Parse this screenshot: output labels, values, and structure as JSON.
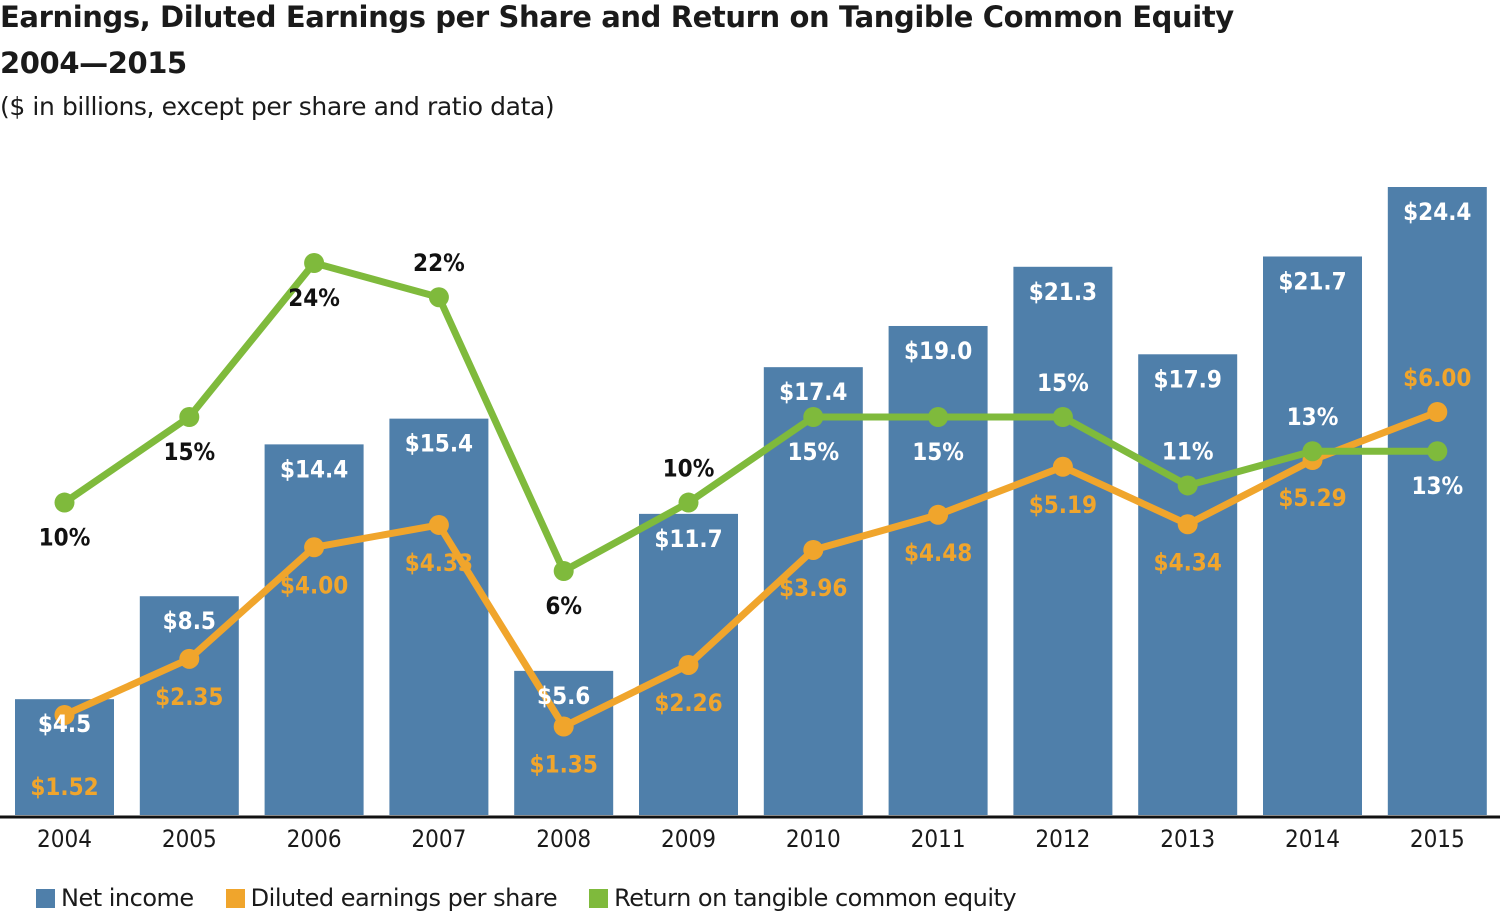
{
  "title_line1": "Earnings, Diluted Earnings per Share and Return on Tangible Common Equity",
  "title_line2": "2004—2015",
  "subtitle": "($ in billions, except per share and ratio data)",
  "colors": {
    "net_income": "#4f7faa",
    "eps": "#f0a52c",
    "rotce": "#7fba3c",
    "axis": "#111111",
    "label_dark": "#111111",
    "label_light": "#ffffff"
  },
  "legend": [
    {
      "label": "Net income",
      "color": "#4f7faa"
    },
    {
      "label": "Diluted earnings per share",
      "color": "#f0a52c"
    },
    {
      "label": "Return on tangible common equity",
      "color": "#7fba3c"
    }
  ],
  "chart_data": {
    "type": "bar+line",
    "title": "Earnings, Diluted Earnings per Share and Return on Tangible Common Equity 2004—2015",
    "subtitle": "($ in billions, except per share and ratio data)",
    "categories": [
      "2004",
      "2005",
      "2006",
      "2007",
      "2008",
      "2009",
      "2010",
      "2011",
      "2012",
      "2013",
      "2014",
      "2015"
    ],
    "series": [
      {
        "name": "Net income",
        "type": "bar",
        "unit": "$ billions",
        "values": [
          4.5,
          8.5,
          14.4,
          15.4,
          5.6,
          11.7,
          17.4,
          19.0,
          21.3,
          17.9,
          21.7,
          24.4
        ],
        "labels": [
          "$4.5",
          "$8.5",
          "$14.4",
          "$15.4",
          "$5.6",
          "$11.7",
          "$17.4",
          "$19.0",
          "$21.3",
          "$17.9",
          "$21.7",
          "$24.4"
        ]
      },
      {
        "name": "Diluted earnings per share",
        "type": "line",
        "unit": "$ per share",
        "values": [
          1.52,
          2.35,
          4.0,
          4.33,
          1.35,
          2.26,
          3.96,
          4.48,
          5.19,
          4.34,
          5.29,
          6.0
        ],
        "labels": [
          "$1.52",
          "$2.35",
          "$4.00",
          "$4.33",
          "$1.35",
          "$2.26",
          "$3.96",
          "$4.48",
          "$5.19",
          "$4.34",
          "$5.29",
          "$6.00"
        ],
        "label_position": [
          "below",
          "below",
          "below",
          "below",
          "below",
          "below",
          "below",
          "below",
          "below",
          "below",
          "below",
          "above"
        ]
      },
      {
        "name": "Return on tangible common equity",
        "type": "line",
        "unit": "%",
        "values": [
          10,
          15,
          24,
          22,
          6,
          10,
          15,
          15,
          15,
          11,
          13,
          13
        ],
        "labels": [
          "10%",
          "15%",
          "24%",
          "22%",
          "6%",
          "10%",
          "15%",
          "15%",
          "15%",
          "11%",
          "13%",
          "13%"
        ],
        "label_position": [
          "below",
          "below",
          "below",
          "above",
          "below",
          "above",
          "below",
          "below",
          "above",
          "above",
          "above",
          "below"
        ]
      }
    ],
    "xlabel": "",
    "ylabel": "",
    "ylim_bar": [
      0,
      24.4
    ],
    "grid": false,
    "legend_position": "bottom-left"
  }
}
